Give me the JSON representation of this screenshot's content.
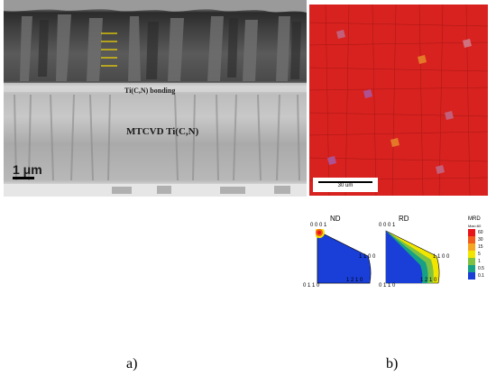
{
  "panel_a": {
    "label_bonding": "Ti(C,N) bonding",
    "label_mtcvd": "MTCVD Ti(C,N)",
    "scalebar": "1 μm",
    "caption": "a)"
  },
  "panel_b": {
    "ebsd_scalebar": "30 um",
    "pole_figures": [
      {
        "title": "ND",
        "top_label": "0 0 0 1",
        "right_label": "1 1 0 0",
        "bottom_left_label": "0 1 1 0",
        "bottom_right_label": "1 2 1 0"
      },
      {
        "title": "RD",
        "top_label": "0 0 0 1",
        "right_label": "1 1 0 0",
        "bottom_left_label": "0 1 1 0",
        "bottom_right_label": "1 2 1 0"
      }
    ],
    "legend": {
      "title": "MRD",
      "max": "Max=60",
      "values": [
        "60",
        "30",
        "15",
        "5",
        "1",
        "0.5",
        "0.1"
      ],
      "colors": [
        "#e8141a",
        "#f25c1c",
        "#f5a623",
        "#f2e600",
        "#7dc242",
        "#16a085",
        "#1a3fd9"
      ]
    },
    "caption": "b)"
  }
}
